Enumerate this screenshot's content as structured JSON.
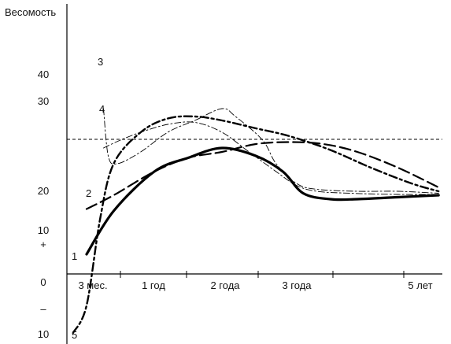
{
  "chart_data": {
    "type": "line",
    "ylabel": "Весомость",
    "y_tick_labels": [
      "40",
      "30",
      "20",
      "10",
      "+",
      "0",
      "–",
      "10"
    ],
    "x_tick_labels": [
      "3 мес.",
      "1 год",
      "2 года",
      "3 года",
      "5 лет"
    ],
    "reference_line": {
      "style": "dashed"
    },
    "series": [
      {
        "name": "1",
        "style": "solid-thick",
        "points": [
          [
            0.0,
            5
          ],
          [
            0.4,
            16
          ],
          [
            1.0,
            26
          ],
          [
            1.5,
            29.5
          ],
          [
            2.0,
            32
          ],
          [
            2.5,
            30
          ],
          [
            2.9,
            26
          ],
          [
            3.2,
            20.5
          ],
          [
            3.6,
            19
          ],
          [
            4.0,
            19
          ],
          [
            4.6,
            19.5
          ],
          [
            5.2,
            20
          ]
        ]
      },
      {
        "name": "2",
        "style": "long-dash",
        "points": [
          [
            0.0,
            16.5
          ],
          [
            0.4,
            20
          ],
          [
            1.0,
            26
          ],
          [
            1.5,
            29.5
          ],
          [
            2.0,
            31
          ],
          [
            2.5,
            33
          ],
          [
            3.0,
            33.5
          ],
          [
            3.5,
            33
          ],
          [
            4.0,
            31
          ],
          [
            4.6,
            27
          ],
          [
            5.2,
            22
          ]
        ]
      },
      {
        "name": "3",
        "style": "thin-dash-dot",
        "points": [
          [
            0.25,
            42
          ],
          [
            0.32,
            30
          ],
          [
            0.45,
            28
          ],
          [
            0.8,
            31
          ],
          [
            1.2,
            36
          ],
          [
            1.6,
            39
          ],
          [
            2.0,
            42
          ],
          [
            2.2,
            40
          ],
          [
            2.6,
            34
          ],
          [
            2.8,
            28
          ],
          [
            3.1,
            23
          ],
          [
            3.4,
            21.5
          ],
          [
            4.0,
            21
          ],
          [
            4.6,
            21
          ],
          [
            5.2,
            20.5
          ]
        ]
      },
      {
        "name": "4",
        "style": "thin-dash-dot",
        "points": [
          [
            0.25,
            32
          ],
          [
            0.5,
            34
          ],
          [
            0.8,
            36
          ],
          [
            1.2,
            38
          ],
          [
            1.6,
            38.5
          ],
          [
            2.0,
            36
          ],
          [
            2.4,
            31
          ],
          [
            2.8,
            26
          ],
          [
            3.1,
            22.5
          ],
          [
            3.4,
            21
          ],
          [
            3.9,
            20.5
          ],
          [
            4.6,
            20.2
          ],
          [
            5.2,
            20.2
          ]
        ]
      },
      {
        "name": "5",
        "style": "bold-dash-dot",
        "points": [
          [
            -0.2,
            -15
          ],
          [
            0.0,
            -8
          ],
          [
            0.2,
            14
          ],
          [
            0.4,
            28
          ],
          [
            0.8,
            36
          ],
          [
            1.2,
            39.5
          ],
          [
            1.6,
            40
          ],
          [
            2.0,
            39
          ],
          [
            2.5,
            37
          ],
          [
            3.0,
            35
          ],
          [
            3.6,
            31.5
          ],
          [
            4.2,
            27
          ],
          [
            4.8,
            23
          ],
          [
            5.2,
            21
          ]
        ]
      }
    ]
  }
}
